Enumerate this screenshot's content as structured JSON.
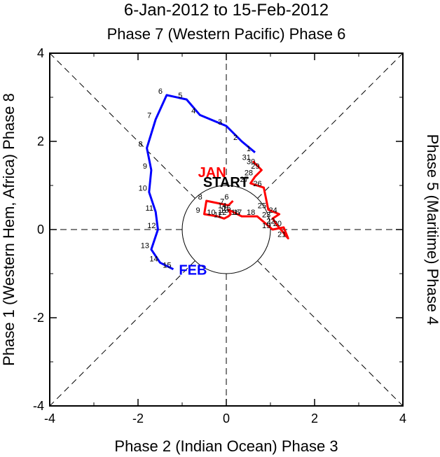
{
  "chart_data": {
    "type": "line",
    "title": "6-Jan-2012 to 15-Feb-2012",
    "top_label": "Phase 7 (Western Pacific) Phase 6",
    "xlabel": "Phase 2 (Indian Ocean) Phase 3",
    "left_label": "Phase 1 (Western Hem, Africa) Phase 8",
    "right_label": "Phase 5 (Maritime) Phase 4",
    "xlim": [
      -4,
      4
    ],
    "ylim": [
      -4,
      4
    ],
    "xticks": [
      "-4",
      "-2",
      "0",
      "2",
      "4"
    ],
    "yticks": [
      "-4",
      "-2",
      "0",
      "2",
      "4"
    ],
    "start_label": "START",
    "unit_circle_radius": 1,
    "series": [
      {
        "name": "Jan",
        "month_label": "JAN",
        "color": "#ff0000",
        "days": [
          "6",
          "7",
          "8",
          "9",
          "10",
          "11",
          "12",
          "13",
          "14",
          "15",
          "16",
          "17",
          "18",
          "19",
          "20",
          "21",
          "22",
          "23",
          "24",
          "25",
          "26",
          "27",
          "28",
          "29",
          "30",
          "31"
        ],
        "x": [
          0.15,
          0.05,
          -0.45,
          -0.5,
          -0.2,
          -0.05,
          0.05,
          0.1,
          0.05,
          0.15,
          0.35,
          0.4,
          0.7,
          1.05,
          1.3,
          1.4,
          1.15,
          1.05,
          1.2,
          0.95,
          0.85,
          0.55,
          0.65,
          0.8,
          0.7,
          0.6
        ],
        "y": [
          0.65,
          0.55,
          0.65,
          0.35,
          0.3,
          0.25,
          0.3,
          0.35,
          0.45,
          0.4,
          0.3,
          0.3,
          0.3,
          0.0,
          0.05,
          -0.2,
          0.1,
          0.25,
          0.35,
          0.45,
          0.95,
          1.05,
          1.2,
          1.35,
          1.45,
          1.55
        ]
      },
      {
        "name": "Feb",
        "month_label": "FEB",
        "color": "#0000ff",
        "days": [
          "1",
          "2",
          "3",
          "4",
          "5",
          "6",
          "7",
          "8",
          "9",
          "10",
          "11",
          "12",
          "13",
          "14",
          "15"
        ],
        "x": [
          0.65,
          0.35,
          0.0,
          -0.6,
          -0.9,
          -1.35,
          -1.6,
          -1.8,
          -1.7,
          -1.75,
          -1.6,
          -1.55,
          -1.7,
          -1.5,
          -1.2
        ],
        "y": [
          1.75,
          2.0,
          2.35,
          2.6,
          2.95,
          3.05,
          2.5,
          1.85,
          1.35,
          0.85,
          0.4,
          0.0,
          -0.45,
          -0.75,
          -0.9
        ]
      }
    ]
  }
}
